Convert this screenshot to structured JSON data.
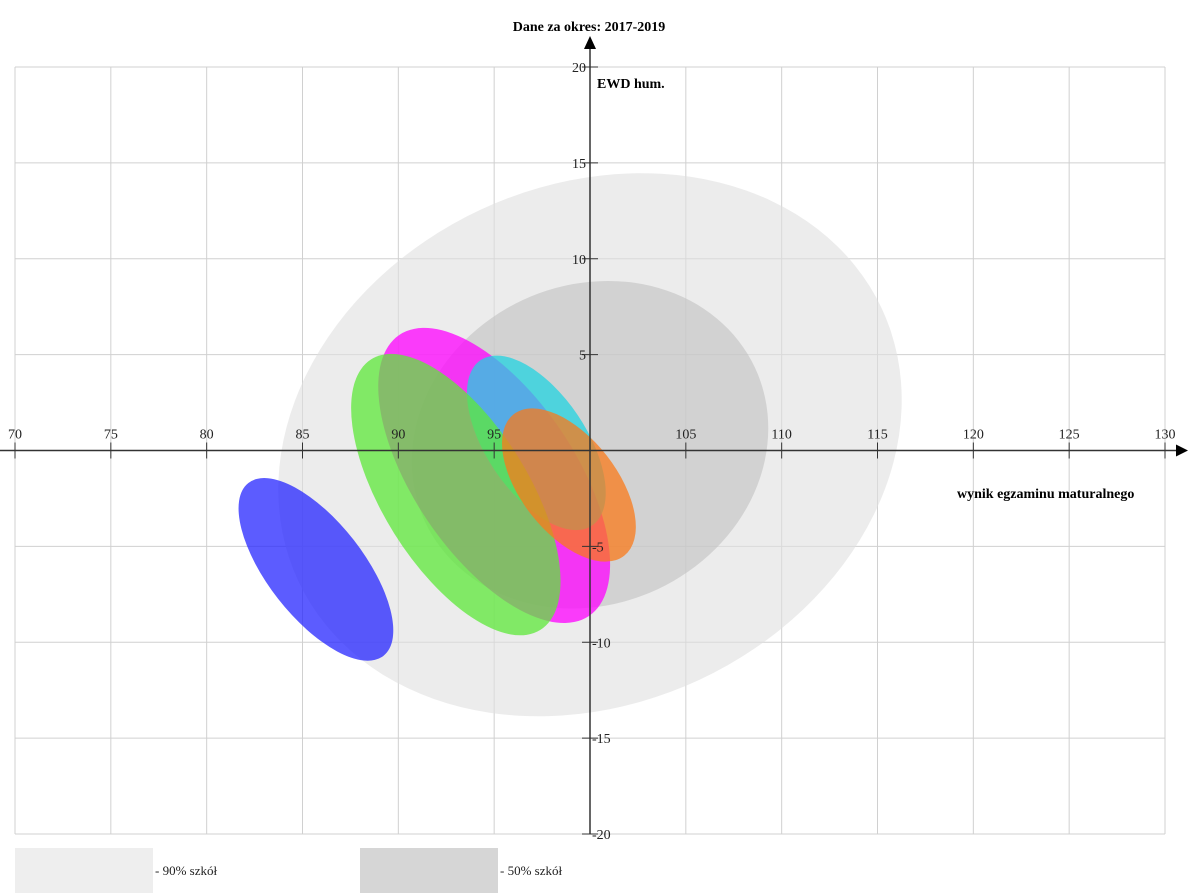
{
  "chart_data": {
    "type": "scatter",
    "title": "Dane za okres: 2017-2019",
    "xlabel": "wynik egzaminu maturalnego",
    "ylabel": "EWD hum.",
    "xlim": [
      70,
      130
    ],
    "ylim": [
      -20,
      20
    ],
    "x_ticks": [
      70,
      75,
      80,
      85,
      90,
      95,
      105,
      110,
      115,
      120,
      125,
      130
    ],
    "y_ticks": [
      20,
      15,
      10,
      5,
      -5,
      -10,
      -15,
      -20
    ],
    "grid": true,
    "ellipses": [
      {
        "name": "",
        "color": "#e0e0e0",
        "opacity": 0.6,
        "cx": 100,
        "cy": 0.3,
        "rx": 16.8,
        "ry": 2.6,
        "angle_deg": 25
      },
      {
        "name": "",
        "color": "#bdbdbd",
        "opacity": 0.55,
        "cx": 100,
        "cy": 0.3,
        "rx": 9.5,
        "ry": 1.6,
        "angle_deg": 25
      },
      {
        "name": "",
        "color": "#ff00ff",
        "opacity": 0.75,
        "cx": 95,
        "cy": -1.3,
        "rx": 4.2,
        "ry": 1.7,
        "angle_deg": 34
      },
      {
        "name": "",
        "color": "#22d3e0",
        "opacity": 0.75,
        "cx": 97.2,
        "cy": 0.4,
        "rx": 2.6,
        "ry": 1.0,
        "angle_deg": 34
      },
      {
        "name": "",
        "color": "#5ee83a",
        "opacity": 0.75,
        "cx": 93,
        "cy": -2.3,
        "rx": 3.8,
        "ry": 1.6,
        "angle_deg": 32
      },
      {
        "name": "",
        "color": "#f97a1a",
        "opacity": 0.75,
        "cx": 98.9,
        "cy": -1.8,
        "rx": 2.5,
        "ry": 0.9,
        "angle_deg": 38
      },
      {
        "name": "",
        "color": "#2626ff",
        "opacity": 0.75,
        "cx": 85.7,
        "cy": -6.2,
        "rx": 2.5,
        "ry": 1.1,
        "angle_deg": 38
      }
    ],
    "legend": [
      {
        "label": "- 90% szkół",
        "color": "#eeeeee"
      },
      {
        "label": "- 50% szkół",
        "color": "#d6d6d6"
      }
    ],
    "legend_position": "bottom-left"
  }
}
